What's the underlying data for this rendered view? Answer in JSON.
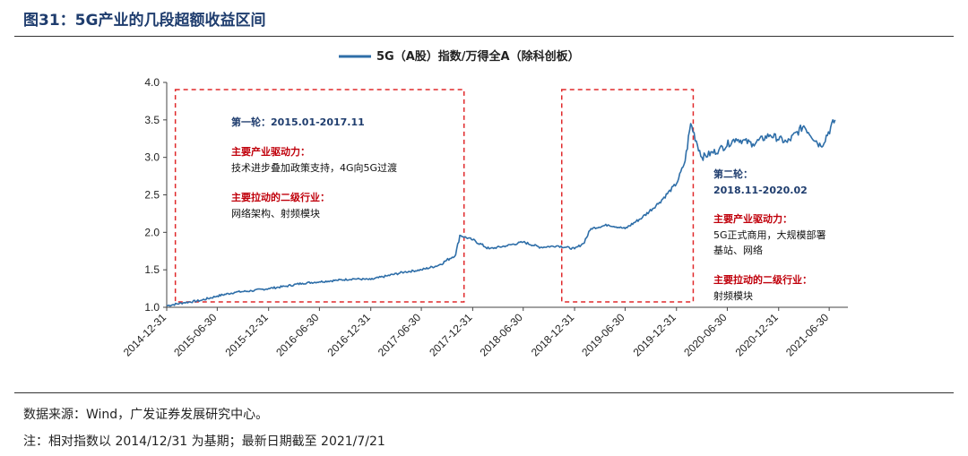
{
  "figure": {
    "title": "图31：5G产业的几段超额收益区间"
  },
  "footer": {
    "source": "数据来源：Wind，广发证券发展研究中心。",
    "note": "注：相对指数以 2014/12/31 为基期；最新日期截至 2021/7/21"
  },
  "colors": {
    "series": "#2e6ea8",
    "annotation_blue": "#1f3d6e",
    "annotation_red": "#c0000b",
    "box_dash": "#e0282a"
  },
  "chart_data": {
    "type": "line",
    "title": "",
    "xlabel": "",
    "ylabel": "",
    "ylim": [
      1.0,
      4.0
    ],
    "y_ticks": [
      "1.0",
      "1.5",
      "2.0",
      "2.5",
      "3.0",
      "3.5",
      "4.0"
    ],
    "x_tick_labels": [
      "2014-12-31",
      "2015-06-30",
      "2015-12-31",
      "2016-06-30",
      "2016-12-31",
      "2017-06-30",
      "2017-12-31",
      "2018-06-30",
      "2018-12-31",
      "2019-06-30",
      "2019-12-31",
      "2020-06-30",
      "2020-12-31",
      "2021-06-30"
    ],
    "legend": "top-center",
    "series": [
      {
        "name": "5G（A股）指数/万得全A（除科创板）",
        "x": [
          "2014-12-31",
          "2015-02-28",
          "2015-04-30",
          "2015-06-30",
          "2015-08-31",
          "2015-10-31",
          "2015-12-31",
          "2016-02-29",
          "2016-04-30",
          "2016-06-30",
          "2016-08-31",
          "2016-10-31",
          "2016-12-31",
          "2017-02-28",
          "2017-04-30",
          "2017-06-30",
          "2017-08-31",
          "2017-10-31",
          "2017-11-15",
          "2017-12-31",
          "2018-02-28",
          "2018-04-30",
          "2018-06-30",
          "2018-08-31",
          "2018-10-31",
          "2018-12-31",
          "2019-01-31",
          "2019-02-28",
          "2019-04-30",
          "2019-06-30",
          "2019-08-31",
          "2019-10-31",
          "2019-12-31",
          "2020-01-31",
          "2020-02-20",
          "2020-03-31",
          "2020-05-31",
          "2020-07-31",
          "2020-09-30",
          "2020-11-30",
          "2021-01-31",
          "2021-03-31",
          "2021-05-31",
          "2021-07-21"
        ],
        "values": [
          1.02,
          1.06,
          1.09,
          1.15,
          1.2,
          1.22,
          1.25,
          1.28,
          1.32,
          1.34,
          1.36,
          1.38,
          1.37,
          1.42,
          1.47,
          1.5,
          1.56,
          1.7,
          1.96,
          1.9,
          1.78,
          1.82,
          1.87,
          1.8,
          1.82,
          1.78,
          1.85,
          2.05,
          2.1,
          2.05,
          2.2,
          2.4,
          2.65,
          2.95,
          3.45,
          3.0,
          3.1,
          3.25,
          3.18,
          3.3,
          3.2,
          3.42,
          3.15,
          3.5
        ]
      }
    ],
    "annotations": {
      "period1": {
        "heading": "第一轮：2015.01-2017.11",
        "driver_label": "主要产业驱动力：",
        "driver_text": "技术进步叠加政策支持，4G向5G过渡",
        "industry_label": "主要拉动的二级行业：",
        "industry_text": "网络架构、射频模块",
        "start": "2015-01-31",
        "end": "2017-11-30"
      },
      "period2": {
        "heading_1": "第二轮：",
        "heading_2": "2018.11-2020.02",
        "driver_label": "主要产业驱动力：",
        "driver_text_1": "5G正式商用，大规模部署",
        "driver_text_2": "基站、网络",
        "industry_label": "主要拉动的二级行业：",
        "industry_text": "射频模块",
        "start": "2018-11-15",
        "end": "2020-02-29"
      }
    }
  }
}
